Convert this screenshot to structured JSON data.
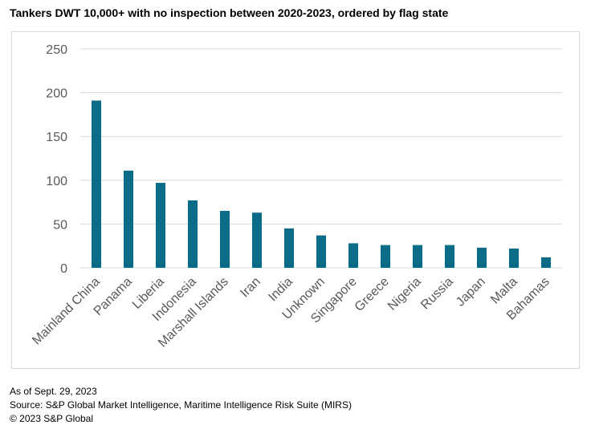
{
  "chart_data": {
    "type": "bar",
    "title": "Tankers DWT 10,000+ with no inspection between 2020-2023, ordered by flag state",
    "xlabel": "",
    "ylabel": "",
    "categories": [
      "Mainland China",
      "Panama",
      "Liberia",
      "Indonesia",
      "Marshall Islands",
      "Iran",
      "India",
      "Unknown",
      "Singapore",
      "Greece",
      "Nigeria",
      "Russia",
      "Japan",
      "Malta",
      "Bahamas"
    ],
    "values": [
      191,
      111,
      97,
      77,
      65,
      63,
      45,
      37,
      28,
      26,
      26,
      26,
      23,
      22,
      12
    ],
    "ylim": [
      0,
      250
    ],
    "yticks": [
      0,
      50,
      100,
      150,
      200,
      250
    ],
    "grid": true,
    "bar_color": "#0a6c87",
    "grid_color": "#d9d9d9",
    "tick_label_color": "#595959"
  },
  "footer": {
    "as_of": "As of Sept. 29, 2023",
    "source": "Source: S&P Global Market Intelligence, Maritime Intelligence Risk Suite (MIRS)",
    "copyright": "© 2023 S&P Global"
  }
}
